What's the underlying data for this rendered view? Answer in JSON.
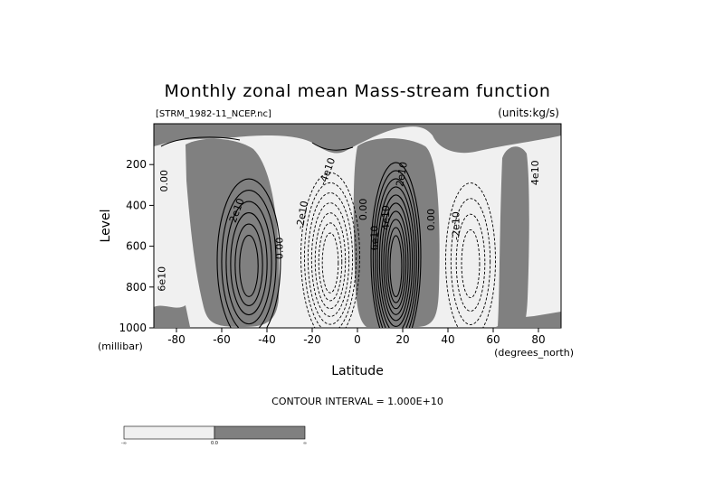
{
  "chart_data": {
    "type": "contour",
    "title": "Monthly zonal mean Mass-stream function",
    "file_label": "[STRM_1982-11_NCEP.nc]",
    "units_label": "(units:kg/s)",
    "xlabel": "Latitude",
    "xunit": "(degrees_north)",
    "ylabel": "Level",
    "yunit": "(millibar)",
    "xlim": [
      -90,
      90
    ],
    "ylim": [
      1000,
      0
    ],
    "x_ticks": [
      -80,
      -60,
      -40,
      -20,
      0,
      20,
      40,
      60,
      80
    ],
    "y_ticks": [
      200,
      400,
      600,
      800,
      1000
    ],
    "contour_interval_text": "CONTOUR INTERVAL = 1.000E+10",
    "contour_interval": 10000000000.0,
    "contour_labels": [
      "0.00",
      "2e10",
      "4e10",
      "6e10",
      "-2e10",
      "-4e10",
      "0.00",
      "2e10",
      "4e10",
      "6e10",
      "0.00",
      "-2e10",
      "0.00"
    ],
    "cells": [
      {
        "name": "southern-polar-positive",
        "center_lat": -48,
        "center_level": 670,
        "lat_halfwidth": 14,
        "level_halfheight": 400,
        "sign": "positive",
        "levels": 6
      },
      {
        "name": "southern-negative",
        "center_lat": -12,
        "center_level": 650,
        "lat_halfwidth": 13,
        "level_halfheight": 410,
        "sign": "negative",
        "levels": 7
      },
      {
        "name": "tropical-positive",
        "center_lat": 17,
        "center_level": 650,
        "lat_halfwidth": 11,
        "level_halfheight": 460,
        "sign": "positive",
        "levels": 10
      },
      {
        "name": "northern-negative",
        "center_lat": 50,
        "center_level": 670,
        "lat_halfwidth": 11,
        "level_halfheight": 380,
        "sign": "negative",
        "levels": 4
      }
    ],
    "shading": {
      "positive_color": "#808080",
      "negative_color": "#f0f0f0"
    },
    "colorbar": {
      "tick_labels": [
        "-∞",
        "0.0",
        "∞"
      ],
      "colors": [
        "#f0f0f0",
        "#808080"
      ]
    }
  }
}
